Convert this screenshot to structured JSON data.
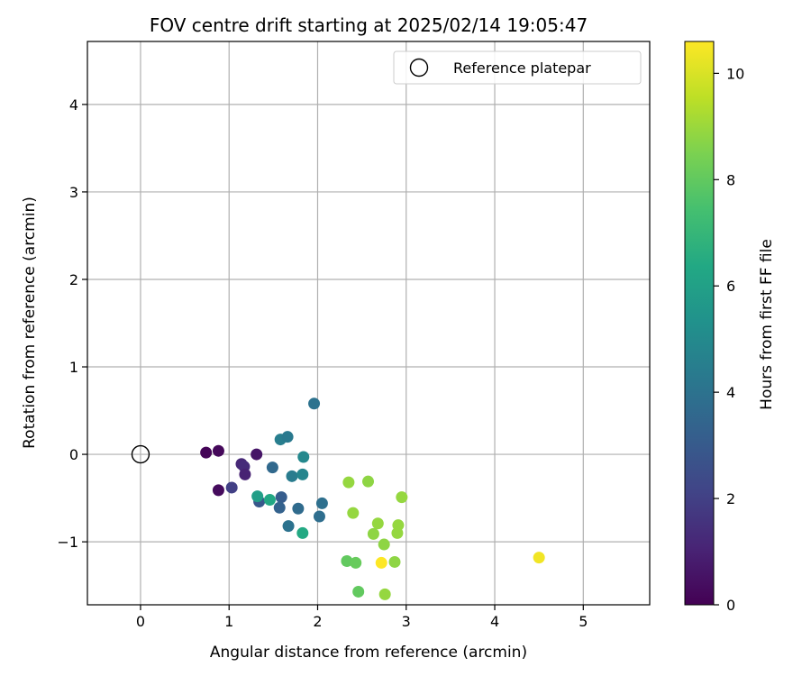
{
  "chart_data": {
    "type": "scatter",
    "title": "FOV centre drift starting at 2025/02/14 19:05:47",
    "xlabel": "Angular distance from reference (arcmin)",
    "ylabel": "Rotation from reference (arcmin)",
    "xlim": [
      -0.6,
      5.75
    ],
    "ylim": [
      -1.72,
      4.72
    ],
    "xticks": [
      0,
      1,
      2,
      3,
      4,
      5
    ],
    "xtick_labels": [
      "0",
      "1",
      "2",
      "3",
      "4",
      "5"
    ],
    "yticks": [
      -1,
      0,
      1,
      2,
      3,
      4
    ],
    "ytick_labels": [
      "−1",
      "0",
      "1",
      "2",
      "3",
      "4"
    ],
    "grid": true,
    "legend": {
      "position": "top-right",
      "label": "Reference platepar"
    },
    "reference_point": {
      "x": 0,
      "y": 0
    },
    "colorbar": {
      "label": "Hours from first FF file",
      "colormap": "viridis",
      "range": [
        0,
        10.6
      ],
      "ticks": [
        0,
        2,
        4,
        6,
        8,
        10
      ],
      "tick_labels": [
        "0",
        "2",
        "4",
        "6",
        "8",
        "10"
      ]
    },
    "points": [
      {
        "x": 0.74,
        "y": 0.02,
        "c": 0.1
      },
      {
        "x": 0.88,
        "y": 0.04,
        "c": 0.2
      },
      {
        "x": 0.88,
        "y": -0.41,
        "c": 0.3
      },
      {
        "x": 1.31,
        "y": 0.0,
        "c": 0.6
      },
      {
        "x": 1.14,
        "y": -0.11,
        "c": 1.2
      },
      {
        "x": 1.17,
        "y": -0.14,
        "c": 1.3
      },
      {
        "x": 1.18,
        "y": -0.23,
        "c": 1.0
      },
      {
        "x": 1.03,
        "y": -0.38,
        "c": 2.0
      },
      {
        "x": 1.34,
        "y": -0.54,
        "c": 2.9
      },
      {
        "x": 1.49,
        "y": -0.15,
        "c": 3.6
      },
      {
        "x": 1.58,
        "y": 0.17,
        "c": 4.5
      },
      {
        "x": 1.66,
        "y": 0.2,
        "c": 4.3
      },
      {
        "x": 1.59,
        "y": -0.49,
        "c": 3.1
      },
      {
        "x": 1.57,
        "y": -0.61,
        "c": 3.3
      },
      {
        "x": 1.67,
        "y": -0.82,
        "c": 4.0
      },
      {
        "x": 1.71,
        "y": -0.25,
        "c": 4.4
      },
      {
        "x": 1.78,
        "y": -0.62,
        "c": 3.7
      },
      {
        "x": 1.84,
        "y": -0.03,
        "c": 4.9
      },
      {
        "x": 1.83,
        "y": -0.23,
        "c": 4.8
      },
      {
        "x": 1.96,
        "y": 0.58,
        "c": 4.0
      },
      {
        "x": 2.05,
        "y": -0.56,
        "c": 3.9
      },
      {
        "x": 2.02,
        "y": -0.71,
        "c": 3.8
      },
      {
        "x": 1.32,
        "y": -0.48,
        "c": 5.9
      },
      {
        "x": 1.46,
        "y": -0.52,
        "c": 6.3
      },
      {
        "x": 1.83,
        "y": -0.9,
        "c": 6.4
      },
      {
        "x": 2.35,
        "y": -0.32,
        "c": 8.9
      },
      {
        "x": 2.57,
        "y": -0.31,
        "c": 8.8
      },
      {
        "x": 2.4,
        "y": -0.67,
        "c": 8.9
      },
      {
        "x": 2.95,
        "y": -0.49,
        "c": 8.9
      },
      {
        "x": 2.68,
        "y": -0.79,
        "c": 8.9
      },
      {
        "x": 2.63,
        "y": -0.91,
        "c": 8.8
      },
      {
        "x": 2.91,
        "y": -0.81,
        "c": 8.9
      },
      {
        "x": 2.9,
        "y": -0.9,
        "c": 8.9
      },
      {
        "x": 2.75,
        "y": -1.03,
        "c": 8.8
      },
      {
        "x": 2.33,
        "y": -1.22,
        "c": 8.0
      },
      {
        "x": 2.43,
        "y": -1.24,
        "c": 8.1
      },
      {
        "x": 2.87,
        "y": -1.23,
        "c": 8.8
      },
      {
        "x": 2.46,
        "y": -1.57,
        "c": 8.0
      },
      {
        "x": 2.76,
        "y": -1.6,
        "c": 8.9
      },
      {
        "x": 2.72,
        "y": -1.24,
        "c": 10.6
      },
      {
        "x": 4.5,
        "y": -1.18,
        "c": 10.4
      }
    ]
  }
}
